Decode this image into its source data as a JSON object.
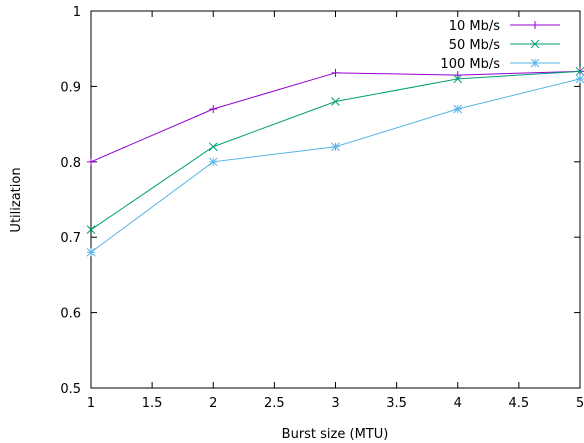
{
  "chart_data": {
    "type": "line",
    "title": "",
    "xlabel": "Burst size (MTU)",
    "ylabel": "Utilization",
    "xlim": [
      1,
      5
    ],
    "ylim": [
      0.5,
      1
    ],
    "xticks": [
      1,
      1.5,
      2,
      2.5,
      3,
      3.5,
      4,
      4.5,
      5
    ],
    "xtick_labels": [
      "1",
      "1.5",
      "2",
      "2.5",
      "3",
      "3.5",
      "4",
      "4.5",
      "5"
    ],
    "yticks": [
      0.5,
      0.6,
      0.7,
      0.8,
      0.9,
      1
    ],
    "ytick_labels": [
      "0.5",
      "0.6",
      "0.7",
      "0.8",
      "0.9",
      "1"
    ],
    "grid": false,
    "legend_position": "top-right",
    "x": [
      1,
      2,
      3,
      4,
      5
    ],
    "series": [
      {
        "name": "10 Mb/s",
        "values": [
          0.8,
          0.87,
          0.918,
          0.915,
          0.92
        ],
        "color": "#9400d3",
        "marker": "plus"
      },
      {
        "name": "50 Mb/s",
        "values": [
          0.71,
          0.82,
          0.88,
          0.91,
          0.92
        ],
        "color": "#009e73",
        "marker": "cross"
      },
      {
        "name": "100 Mb/s",
        "values": [
          0.68,
          0.8,
          0.82,
          0.87,
          0.91
        ],
        "color": "#56b4e9",
        "marker": "star"
      }
    ]
  }
}
